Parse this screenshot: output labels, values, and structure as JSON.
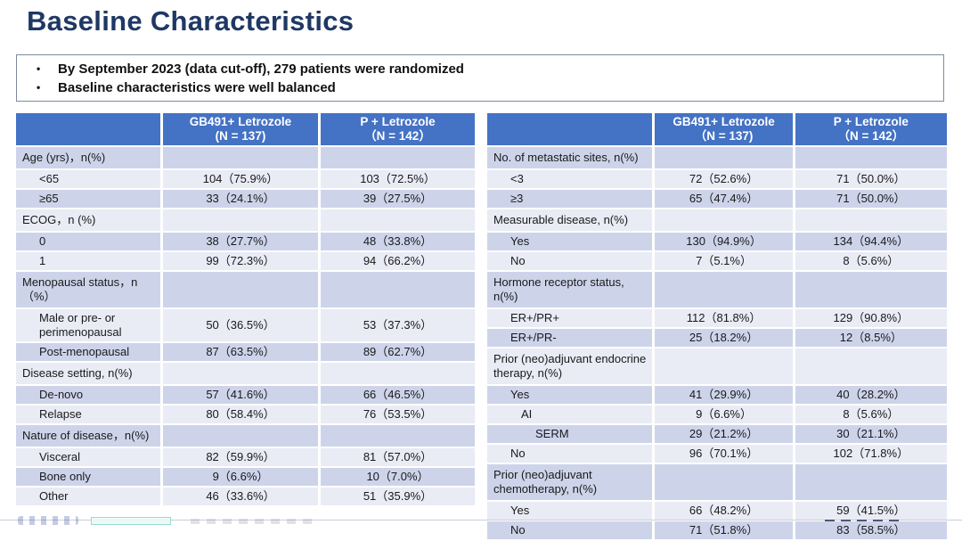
{
  "title": "Baseline Characteristics",
  "bullets": [
    "By September 2023 (data cut-off), 279 patients were randomized",
    "Baseline characteristics were well balanced"
  ],
  "left_table": {
    "columns": [
      {
        "name": "GB491+ Letrozole",
        "n": "(N = 137)"
      },
      {
        "name": "P + Letrozole",
        "n": "（N = 142）"
      }
    ],
    "rows": [
      {
        "label": "Age (yrs)，n(%)",
        "type": "category",
        "indent": 0,
        "values": [
          "",
          ""
        ]
      },
      {
        "label": "<65",
        "type": "data",
        "indent": 1,
        "values": [
          "104（75.9%）",
          "103（72.5%）"
        ]
      },
      {
        "label": "≥65",
        "type": "data",
        "indent": 1,
        "values": [
          "33（24.1%）",
          "39（27.5%）"
        ]
      },
      {
        "label": "ECOG，n (%)",
        "type": "category",
        "indent": 0,
        "values": [
          "",
          ""
        ]
      },
      {
        "label": "0",
        "type": "data",
        "indent": 1,
        "values": [
          "38（27.7%）",
          "48（33.8%）"
        ]
      },
      {
        "label": "1",
        "type": "data",
        "indent": 1,
        "values": [
          "99（72.3%）",
          "94（66.2%）"
        ]
      },
      {
        "label": "Menopausal status，n（%）",
        "type": "category",
        "indent": 0,
        "values": [
          "",
          ""
        ]
      },
      {
        "label": "Male or pre- or perimenopausal",
        "type": "data",
        "indent": 1,
        "values": [
          "50（36.5%）",
          "53（37.3%）"
        ]
      },
      {
        "label": "Post-menopausal",
        "type": "data",
        "indent": 1,
        "values": [
          "87（63.5%）",
          "89（62.7%）"
        ]
      },
      {
        "label": "Disease setting, n(%)",
        "type": "category",
        "indent": 0,
        "values": [
          "",
          ""
        ]
      },
      {
        "label": "De-novo",
        "type": "data",
        "indent": 1,
        "values": [
          "57（41.6%）",
          "66（46.5%）"
        ]
      },
      {
        "label": "Relapse",
        "type": "data",
        "indent": 1,
        "values": [
          "80（58.4%）",
          "76（53.5%）"
        ]
      },
      {
        "label": "Nature of disease，n(%)",
        "type": "category",
        "indent": 0,
        "values": [
          "",
          ""
        ]
      },
      {
        "label": "Visceral",
        "type": "data",
        "indent": 1,
        "values": [
          "82（59.9%）",
          "81（57.0%）"
        ]
      },
      {
        "label": "Bone only",
        "type": "data",
        "indent": 1,
        "values": [
          "9（6.6%）",
          "10（7.0%）"
        ]
      },
      {
        "label": "Other",
        "type": "data",
        "indent": 1,
        "values": [
          "46（33.6%）",
          "51（35.9%）"
        ]
      }
    ]
  },
  "right_table": {
    "columns": [
      {
        "name": "GB491+ Letrozole",
        "n": "（N = 137)"
      },
      {
        "name": "P + Letrozole",
        "n": "（N = 142）"
      }
    ],
    "rows": [
      {
        "label": "No. of metastatic sites, n(%)",
        "type": "category",
        "indent": 0,
        "values": [
          "",
          ""
        ]
      },
      {
        "label": "<3",
        "type": "data",
        "indent": 1,
        "values": [
          "72（52.6%）",
          "71（50.0%）"
        ]
      },
      {
        "label": "≥3",
        "type": "data",
        "indent": 1,
        "values": [
          "65（47.4%）",
          "71（50.0%）"
        ]
      },
      {
        "label": "Measurable disease, n(%)",
        "type": "category",
        "indent": 0,
        "values": [
          "",
          ""
        ]
      },
      {
        "label": "Yes",
        "type": "data",
        "indent": 1,
        "values": [
          "130（94.9%）",
          "134（94.4%）"
        ]
      },
      {
        "label": "No",
        "type": "data",
        "indent": 1,
        "values": [
          "7（5.1%）",
          "8（5.6%）"
        ]
      },
      {
        "label": "Hormone receptor status, n(%)",
        "type": "category",
        "indent": 0,
        "values": [
          "",
          ""
        ]
      },
      {
        "label": "ER+/PR+",
        "type": "data",
        "indent": 1,
        "values": [
          "112（81.8%）",
          "129（90.8%）"
        ]
      },
      {
        "label": "ER+/PR-",
        "type": "data",
        "indent": 1,
        "values": [
          "25（18.2%）",
          "12（8.5%）"
        ]
      },
      {
        "label": "Prior (neo)adjuvant endocrine therapy, n(%)",
        "type": "category",
        "indent": 0,
        "values": [
          "",
          ""
        ]
      },
      {
        "label": "Yes",
        "type": "data",
        "indent": 1,
        "values": [
          "41（29.9%）",
          "40（28.2%）"
        ]
      },
      {
        "label": "AI",
        "type": "data",
        "indent": 2,
        "values": [
          "9（6.6%）",
          "8（5.6%）"
        ]
      },
      {
        "label": "SERM",
        "type": "data",
        "indent": 3,
        "values": [
          "29（21.2%）",
          "30（21.1%）"
        ]
      },
      {
        "label": "No",
        "type": "data",
        "indent": 1,
        "values": [
          "96（70.1%）",
          "102（71.8%）"
        ]
      },
      {
        "label": "Prior (neo)adjuvant chemotherapy, n(%)",
        "type": "category",
        "indent": 0,
        "values": [
          "",
          ""
        ]
      },
      {
        "label": "Yes",
        "type": "data",
        "indent": 1,
        "values": [
          "66（48.2%）",
          "59（41.5%）"
        ]
      },
      {
        "label": "No",
        "type": "data",
        "indent": 1,
        "values": [
          "71（51.8%）",
          "83（58.5%）"
        ]
      }
    ]
  },
  "colors": {
    "title_navy": "#1F3864",
    "header_blue": "#4472C4",
    "band_dark": "#CDD4EA",
    "band_light": "#E9EBF5"
  },
  "bullet_glyph": "•"
}
